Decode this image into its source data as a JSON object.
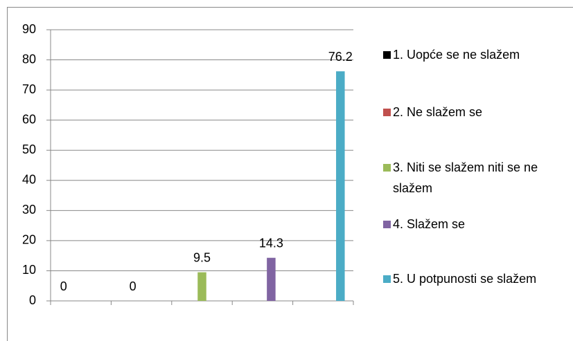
{
  "chart_data": {
    "type": "bar",
    "categories": [
      null,
      null,
      null,
      null,
      null
    ],
    "series": [
      {
        "name": "1. Uopće se ne slažem",
        "color": "#000000",
        "values": [
          0,
          null,
          null,
          null,
          null
        ]
      },
      {
        "name": "2. Ne slažem se",
        "color": "#c0504d",
        "values": [
          null,
          0,
          null,
          null,
          null
        ]
      },
      {
        "name": "3. Niti se slažem niti se ne slažem",
        "color": "#9bbb59",
        "values": [
          null,
          null,
          9.5,
          null,
          null
        ]
      },
      {
        "name": "4. Slažem se",
        "color": "#8064a2",
        "values": [
          null,
          null,
          null,
          14.3,
          null
        ]
      },
      {
        "name": "5. U potpunosti se slažem",
        "color": "#4bacc6",
        "values": [
          null,
          null,
          null,
          null,
          76.2
        ]
      }
    ],
    "ylim": [
      0,
      90
    ],
    "yticks": [
      0,
      10,
      20,
      30,
      40,
      50,
      60,
      70,
      80,
      90
    ],
    "grid": true,
    "legend": "right",
    "data_labels": true
  }
}
